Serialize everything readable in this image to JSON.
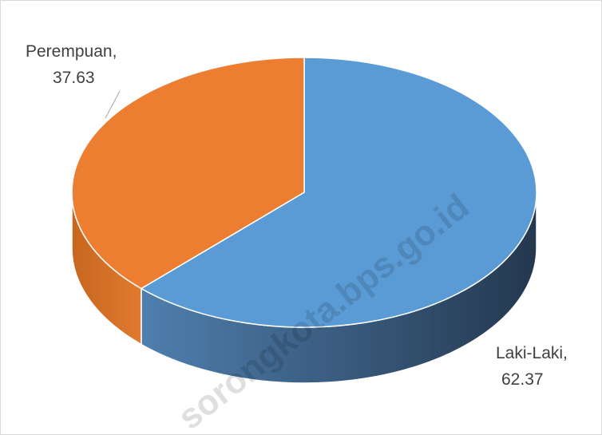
{
  "chart_data": {
    "type": "pie3d",
    "categories": [
      "Laki-Laki,",
      "Perempuan,"
    ],
    "values": [
      62.37,
      37.63
    ],
    "colors": [
      "#5b9bd5",
      "#ed7d31"
    ],
    "watermark": "sorongkota.bps.go.id"
  }
}
